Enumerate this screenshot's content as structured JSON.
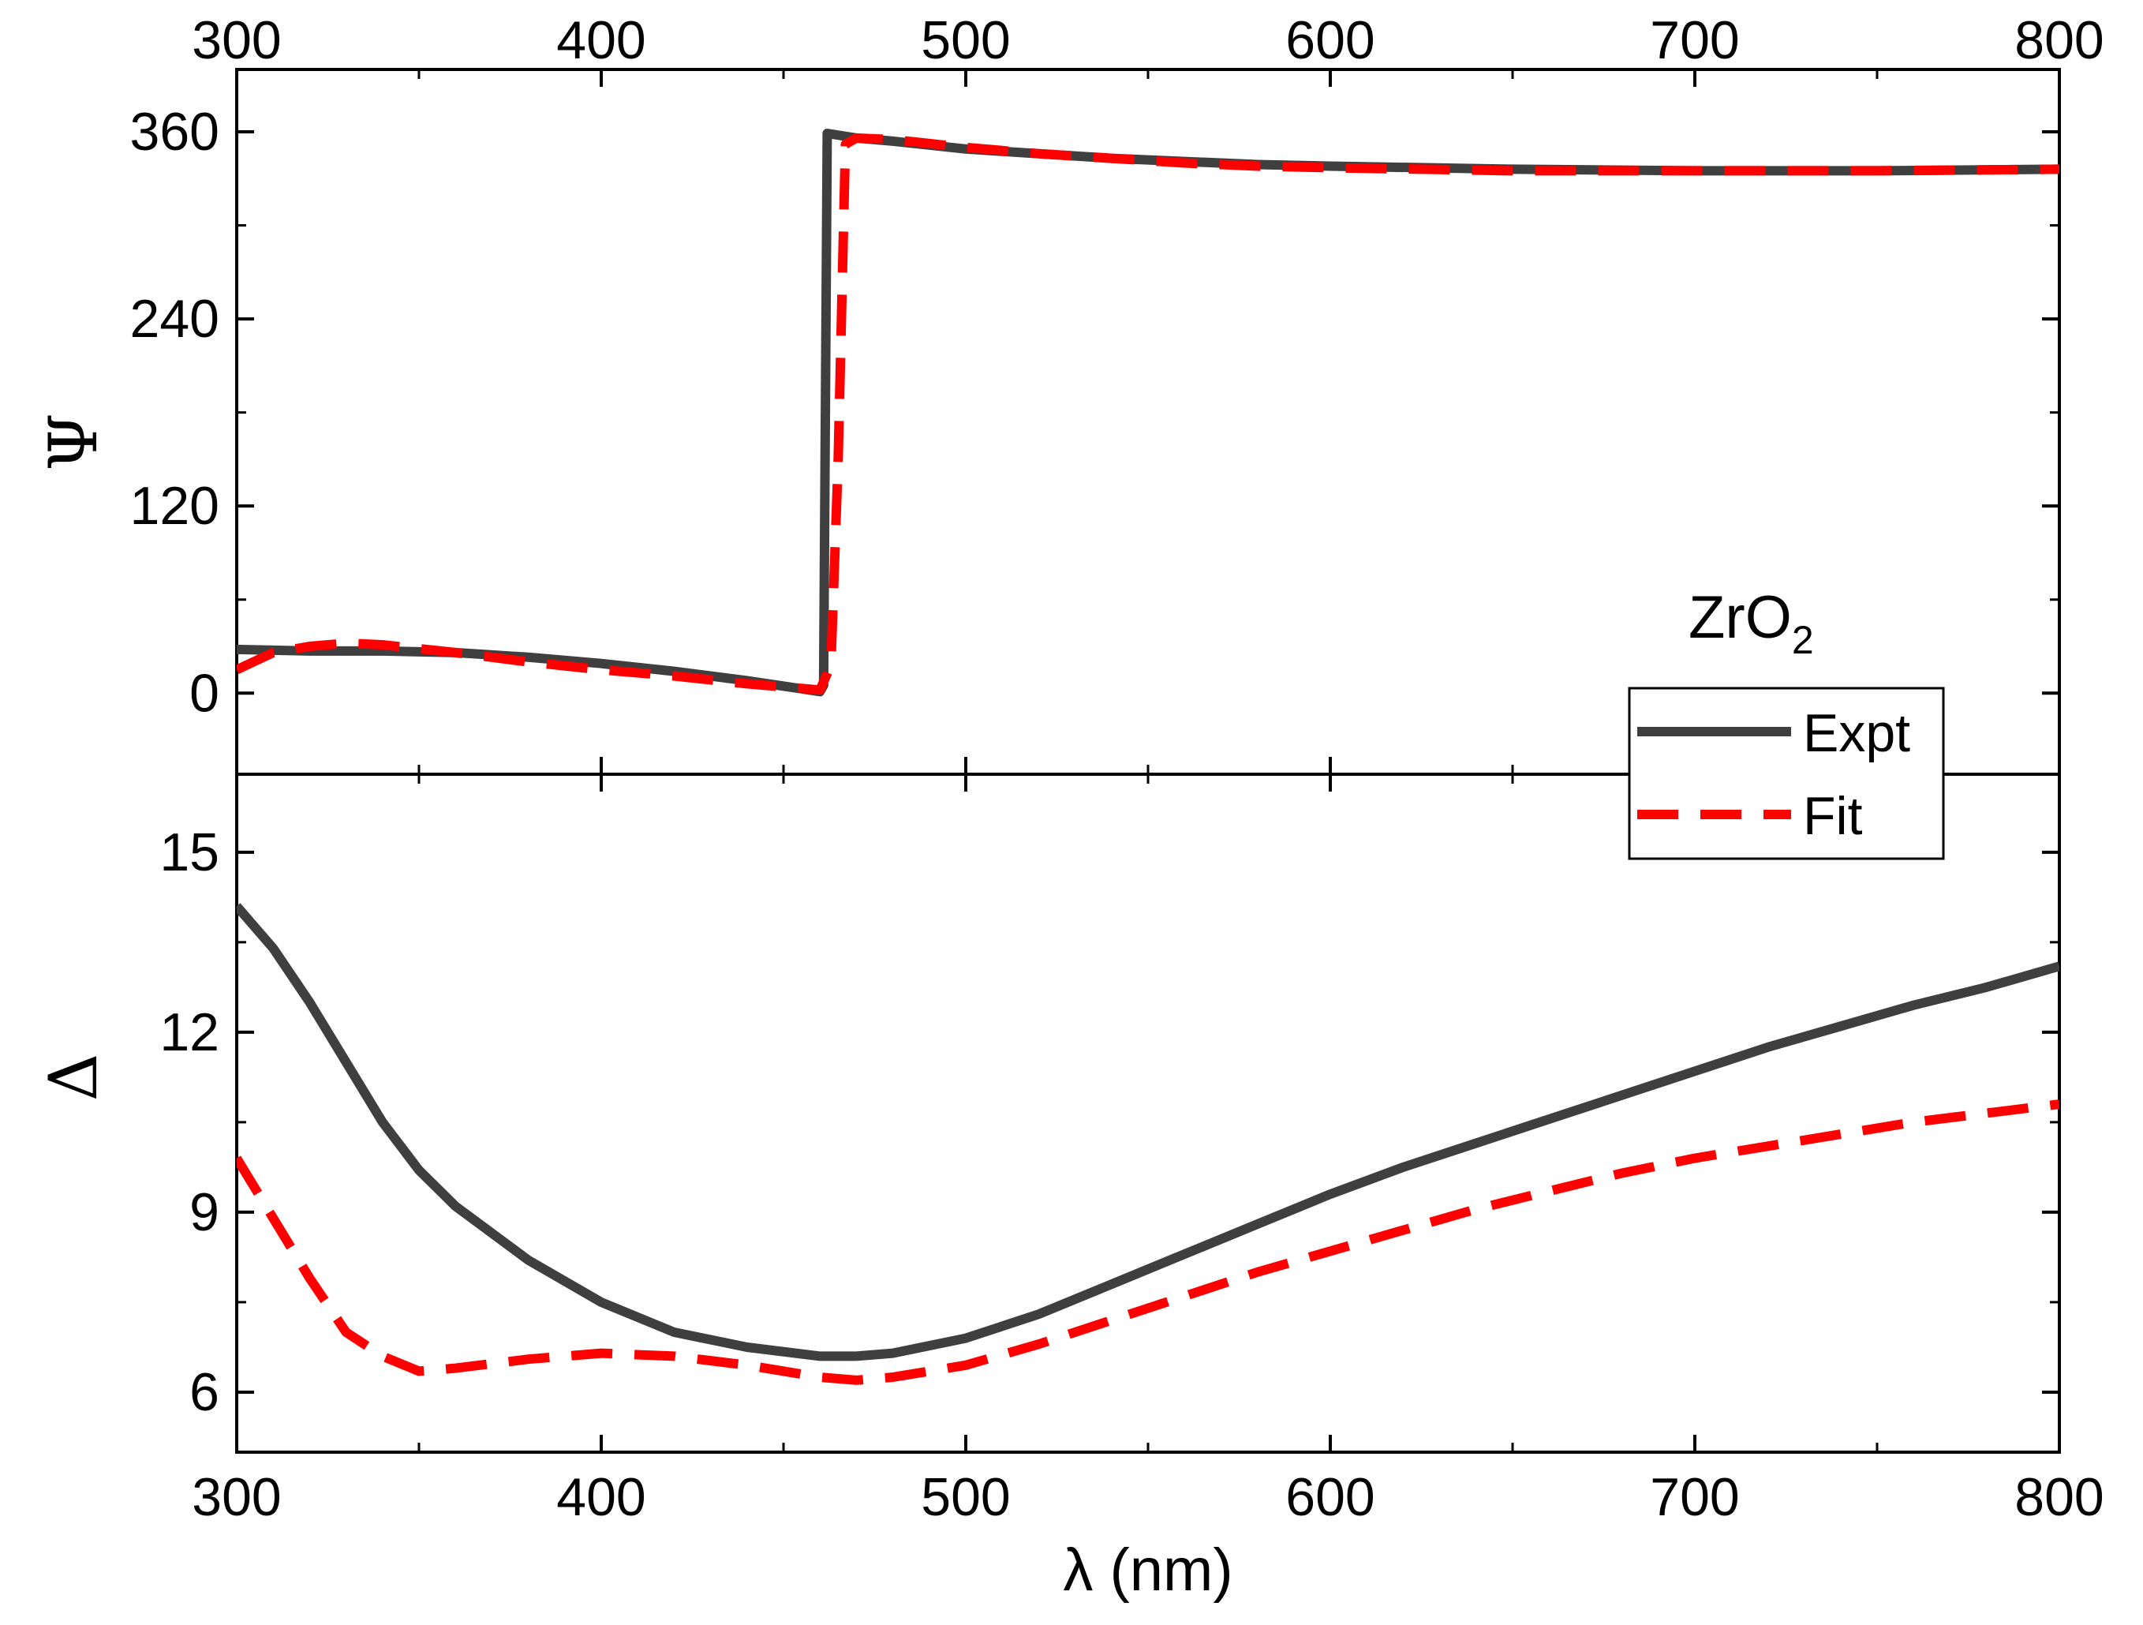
{
  "chart_data": [
    {
      "type": "line",
      "panel": "top",
      "ylabel": "Ψ",
      "xlabel": "",
      "xlim": [
        300,
        800
      ],
      "ylim": [
        -52,
        400
      ],
      "yticks": [
        0,
        120,
        240,
        360
      ],
      "xticks": [
        300,
        400,
        500,
        600,
        700,
        800
      ],
      "annotation": {
        "base": "ZrO",
        "sub": "2"
      },
      "series": [
        {
          "name": "Expt",
          "color": "#3f3f3f",
          "style": "solid",
          "x": [
            300,
            320,
            340,
            360,
            380,
            400,
            420,
            440,
            460,
            461,
            462,
            470,
            480,
            500,
            520,
            540,
            560,
            580,
            600,
            650,
            700,
            750,
            800
          ],
          "y": [
            28,
            27,
            27,
            26,
            23,
            19,
            14,
            8,
            1,
            5,
            359,
            356,
            354,
            349,
            346,
            343,
            341,
            339,
            338,
            336,
            335,
            335,
            336
          ]
        },
        {
          "name": "Fit",
          "color": "#ff0000",
          "style": "dashed",
          "x": [
            300,
            310,
            320,
            330,
            340,
            360,
            380,
            400,
            420,
            440,
            460,
            463,
            465,
            467,
            470,
            480,
            500,
            520,
            540,
            560,
            580,
            600,
            650,
            700,
            750,
            800
          ],
          "y": [
            15,
            26,
            30,
            32,
            31,
            26,
            20,
            15,
            11,
            6,
            2,
            18,
            150,
            352,
            356,
            355,
            350,
            346,
            343,
            340,
            338,
            337,
            335,
            335,
            335,
            336
          ]
        }
      ]
    },
    {
      "type": "line",
      "panel": "bottom",
      "ylabel": "Δ",
      "xlabel": "λ (nm)",
      "xlim": [
        300,
        800
      ],
      "ylim": [
        5,
        16.3
      ],
      "yticks": [
        6,
        9,
        12,
        15
      ],
      "xticks": [
        300,
        400,
        500,
        600,
        700,
        800
      ],
      "series": [
        {
          "name": "Expt",
          "color": "#3f3f3f",
          "style": "solid",
          "x": [
            300,
            310,
            320,
            330,
            340,
            350,
            360,
            380,
            400,
            420,
            440,
            460,
            470,
            480,
            500,
            520,
            540,
            560,
            580,
            600,
            620,
            640,
            660,
            680,
            700,
            720,
            740,
            760,
            780,
            800
          ],
          "y": [
            14.1,
            13.4,
            12.5,
            11.5,
            10.5,
            9.7,
            9.1,
            8.2,
            7.5,
            7.0,
            6.75,
            6.6,
            6.6,
            6.65,
            6.9,
            7.3,
            7.8,
            8.3,
            8.8,
            9.3,
            9.75,
            10.15,
            10.55,
            10.95,
            11.35,
            11.75,
            12.1,
            12.45,
            12.75,
            13.1
          ]
        },
        {
          "name": "Fit",
          "color": "#ff0000",
          "style": "dashed",
          "x": [
            300,
            310,
            320,
            330,
            340,
            350,
            360,
            380,
            400,
            420,
            440,
            460,
            470,
            480,
            500,
            520,
            540,
            560,
            580,
            600,
            620,
            640,
            660,
            680,
            700,
            720,
            740,
            760,
            780,
            800
          ],
          "y": [
            9.9,
            8.9,
            7.9,
            7.0,
            6.6,
            6.35,
            6.4,
            6.55,
            6.65,
            6.6,
            6.45,
            6.25,
            6.2,
            6.25,
            6.45,
            6.8,
            7.2,
            7.6,
            8.0,
            8.35,
            8.7,
            9.05,
            9.35,
            9.65,
            9.9,
            10.1,
            10.3,
            10.5,
            10.65,
            10.8
          ]
        }
      ]
    }
  ],
  "legend": {
    "placement": "right, straddling panels",
    "entries": [
      {
        "label": "Expt",
        "color": "#3f3f3f",
        "style": "solid"
      },
      {
        "label": "Fit",
        "color": "#ff0000",
        "style": "dashed"
      }
    ]
  }
}
